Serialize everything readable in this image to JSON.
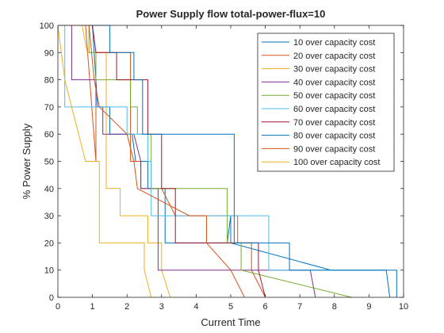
{
  "chart_data": {
    "type": "line",
    "title": "Power Supply flow total-power-flux=10",
    "xlabel": "Current Time",
    "ylabel": "% Power Supply",
    "xlim": [
      0,
      10
    ],
    "ylim": [
      0,
      100
    ],
    "xticks": [
      0,
      1,
      2,
      3,
      4,
      5,
      6,
      7,
      8,
      9,
      10
    ],
    "yticks": [
      0,
      10,
      20,
      30,
      40,
      50,
      60,
      70,
      80,
      90,
      100
    ],
    "grid": false,
    "legend_position": "top-right",
    "series": [
      {
        "name": "10 over capacity cost",
        "color": "#0072BD",
        "x": [
          0,
          1.0,
          1.15,
          1.5,
          1.5,
          2.15,
          2.25,
          2.6,
          2.6,
          3.1,
          3.1,
          4.9,
          5.0,
          5.0,
          7.9,
          9.5,
          9.6
        ],
        "y": [
          100,
          100,
          70,
          70,
          60,
          60,
          50,
          50,
          40,
          40,
          20,
          20,
          30,
          20,
          10,
          10,
          0
        ]
      },
      {
        "name": "20 over capacity cost",
        "color": "#D95319",
        "x": [
          0,
          0.8,
          1.1,
          1.1,
          2.1,
          2.1,
          2.4,
          2.4,
          3.0,
          3.4,
          3.4,
          5.2,
          5.2,
          5.6,
          5.6,
          6.0
        ],
        "y": [
          100,
          100,
          50,
          90,
          90,
          50,
          50,
          40,
          40,
          30,
          30,
          30,
          20,
          20,
          10,
          0
        ]
      },
      {
        "name": "30 over capacity cost",
        "color": "#EDB120",
        "x": [
          0,
          0.7,
          0.85,
          1.4,
          1.4,
          1.8,
          1.8,
          2.6,
          2.6,
          3.0,
          3.0,
          3.0,
          3.25
        ],
        "y": [
          100,
          100,
          90,
          90,
          40,
          40,
          30,
          30,
          20,
          20,
          10,
          10,
          0
        ]
      },
      {
        "name": "40 over capacity cost",
        "color": "#7E2F8E",
        "x": [
          0,
          0.4,
          0.4,
          1.1,
          1.1,
          1.3,
          1.3,
          2.2,
          2.4,
          2.4,
          2.9,
          2.9,
          7.3,
          7.45
        ],
        "y": [
          100,
          100,
          80,
          80,
          70,
          70,
          60,
          60,
          50,
          40,
          40,
          10,
          10,
          0
        ]
      },
      {
        "name": "50 over capacity cost",
        "color": "#77AC30",
        "x": [
          0,
          0.9,
          0.9,
          1.1,
          1.1,
          2.1,
          2.1,
          2.3,
          2.3,
          2.7,
          2.7,
          4.9,
          4.9,
          5.3,
          5.3,
          8.5
        ],
        "y": [
          100,
          100,
          90,
          90,
          80,
          80,
          70,
          70,
          60,
          60,
          40,
          40,
          20,
          20,
          10,
          0
        ]
      },
      {
        "name": "60 over capacity cost",
        "color": "#4DBEEE",
        "x": [
          0,
          0.2,
          0.2,
          2.0,
          2.0,
          2.6,
          2.6,
          2.7,
          2.7,
          6.1,
          6.1,
          9.4
        ],
        "y": [
          100,
          100,
          70,
          70,
          60,
          60,
          50,
          50,
          30,
          30,
          10,
          10
        ]
      },
      {
        "name": "70 over capacity cost",
        "color": "#A2142F",
        "x": [
          0,
          1.0,
          1.1,
          1.1,
          1.7,
          1.7,
          2.6,
          2.6,
          3.0,
          3.0,
          3.4,
          3.4,
          5.8,
          5.8,
          5.8,
          6.0
        ],
        "y": [
          100,
          100,
          90,
          90,
          90,
          80,
          80,
          60,
          60,
          40,
          40,
          20,
          20,
          10,
          10,
          0
        ]
      },
      {
        "name": "80 over capacity cost",
        "color": "#0072BD",
        "x": [
          0,
          1.5,
          1.5,
          2.2,
          2.2,
          2.45,
          2.45,
          5.1,
          5.1,
          6.7,
          6.7,
          9.8,
          9.8
        ],
        "y": [
          100,
          100,
          90,
          90,
          80,
          80,
          60,
          60,
          20,
          20,
          10,
          10,
          0
        ]
      },
      {
        "name": "90 over capacity cost",
        "color": "#D95319",
        "x": [
          0,
          0.9,
          1.05,
          1.05,
          1.2,
          1.2,
          2.0,
          2.0,
          2.2,
          2.2,
          2.3,
          2.3,
          3.8,
          3.8,
          4.3,
          4.3,
          5.0,
          5.4
        ],
        "y": [
          100,
          100,
          80,
          80,
          70,
          70,
          60,
          60,
          50,
          50,
          40,
          40,
          30,
          30,
          30,
          20,
          10,
          0
        ]
      },
      {
        "name": "100 over capacity cost",
        "color": "#EDB120",
        "x": [
          0,
          0.2,
          0.4,
          0.6,
          0.8,
          0.8,
          1.2,
          1.2,
          2.5,
          2.5,
          2.5,
          2.7,
          2.7
        ],
        "y": [
          100,
          80,
          70,
          60,
          50,
          50,
          50,
          20,
          20,
          10,
          10,
          0,
          0
        ]
      }
    ]
  }
}
